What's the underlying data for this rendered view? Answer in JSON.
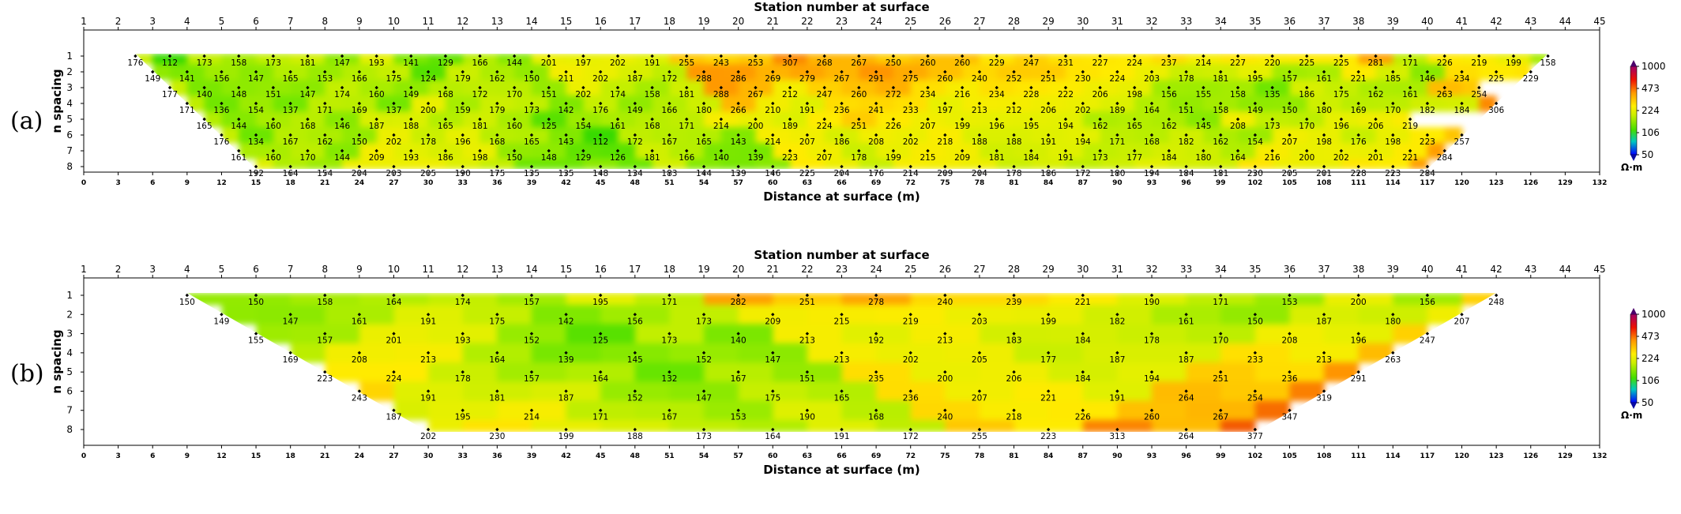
{
  "colors": {
    "scale": [
      "#3b0f8a",
      "#0000ff",
      "#00d0a0",
      "#55dd00",
      "#aaee00",
      "#ffff00",
      "#ffcc00",
      "#ff8800",
      "#ff2200",
      "#cc0000",
      "#a0006a"
    ]
  },
  "chart_data": [
    {
      "panel_label": "(a)",
      "type": "heatmap",
      "title": "Station number at surface",
      "xlabel": "Distance at surface (m)",
      "ylabel": "n spacing",
      "xlim": [
        0,
        132
      ],
      "ylim": [
        1,
        8
      ],
      "xticks": [
        0,
        3,
        6,
        9,
        12,
        15,
        18,
        21,
        24,
        27,
        30,
        33,
        36,
        39,
        42,
        45,
        48,
        51,
        54,
        57,
        60,
        63,
        66,
        69,
        72,
        75,
        78,
        81,
        84,
        87,
        90,
        93,
        96,
        99,
        102,
        105,
        108,
        111,
        114,
        117,
        120,
        123,
        126,
        129,
        132
      ],
      "station_ticks": [
        "1",
        "2",
        "3",
        "4",
        "5",
        "6",
        "7",
        "8",
        "9",
        "10",
        "11",
        "12",
        "13",
        "14",
        "15",
        "16",
        "17",
        "18",
        "19",
        "20",
        "21",
        "22",
        "23",
        "24",
        "25",
        "26",
        "27",
        "28",
        "29",
        "30",
        "31",
        "32",
        "33",
        "34",
        "35",
        "36",
        "37",
        "38",
        "39",
        "40",
        "41",
        "42",
        "43",
        "44",
        "45"
      ],
      "yticks": [
        "1",
        "2",
        "3",
        "4",
        "5",
        "6",
        "7",
        "8"
      ],
      "colorbar": {
        "ticks": [
          "1000",
          "473",
          "224",
          "106",
          "50"
        ],
        "unit": "Ω·m"
      },
      "rows": [
        {
          "n": 1,
          "x_start": 4.5,
          "step": 3,
          "values": [
            176,
            112,
            173,
            158,
            173,
            181,
            147,
            193,
            141,
            129,
            166,
            144,
            201,
            197,
            202,
            191,
            255,
            243,
            253,
            307,
            268,
            267,
            250,
            260,
            260,
            229,
            247,
            231,
            227,
            224,
            237,
            214,
            227,
            220,
            225,
            225,
            281,
            171,
            226,
            219,
            199,
            158
          ]
        },
        {
          "n": 2,
          "x_start": 6,
          "step": 3,
          "values": [
            149,
            141,
            156,
            147,
            165,
            153,
            166,
            175,
            124,
            179,
            162,
            150,
            211,
            202,
            187,
            172,
            288,
            286,
            269,
            279,
            267,
            291,
            275,
            260,
            240,
            252,
            251,
            230,
            224,
            203,
            178,
            181,
            195,
            157,
            161,
            221,
            185,
            146,
            234,
            225,
            229
          ]
        },
        {
          "n": 3,
          "x_start": 7.5,
          "step": 3,
          "values": [
            177,
            140,
            148,
            151,
            147,
            174,
            160,
            149,
            168,
            172,
            170,
            151,
            202,
            174,
            158,
            181,
            288,
            267,
            212,
            247,
            260,
            272,
            234,
            216,
            234,
            228,
            222,
            206,
            198,
            156,
            155,
            158,
            135,
            186,
            175,
            162,
            161,
            263,
            254
          ]
        },
        {
          "n": 4,
          "x_start": 9,
          "step": 3,
          "values": [
            171,
            136,
            154,
            137,
            171,
            169,
            137,
            200,
            159,
            179,
            173,
            142,
            176,
            149,
            166,
            180,
            266,
            210,
            191,
            236,
            241,
            233,
            197,
            213,
            212,
            206,
            202,
            189,
            164,
            151,
            158,
            149,
            150,
            180,
            169,
            170,
            182,
            184,
            306
          ]
        },
        {
          "n": 5,
          "x_start": 10.5,
          "step": 3,
          "values": [
            165,
            144,
            160,
            168,
            146,
            187,
            188,
            165,
            181,
            160,
            125,
            154,
            161,
            168,
            171,
            214,
            200,
            189,
            224,
            251,
            226,
            207,
            199,
            196,
            195,
            194,
            162,
            165,
            162,
            145,
            208,
            173,
            170,
            196,
            206,
            219
          ]
        },
        {
          "n": 6,
          "x_start": 12,
          "step": 3,
          "values": [
            176,
            134,
            167,
            162,
            150,
            202,
            178,
            196,
            168,
            165,
            143,
            112,
            172,
            167,
            165,
            143,
            214,
            207,
            186,
            208,
            202,
            218,
            188,
            188,
            191,
            194,
            171,
            168,
            182,
            162,
            154,
            207,
            198,
            176,
            198,
            223,
            257
          ]
        },
        {
          "n": 7,
          "x_start": 13.5,
          "step": 3,
          "values": [
            161,
            160,
            170,
            144,
            209,
            193,
            186,
            198,
            150,
            148,
            129,
            126,
            181,
            166,
            140,
            139,
            223,
            207,
            178,
            199,
            215,
            209,
            181,
            184,
            191,
            173,
            177,
            184,
            180,
            164,
            216,
            200,
            202,
            201,
            221,
            284
          ]
        },
        {
          "n": 8,
          "x_start": 15,
          "step": 3,
          "values": [
            192,
            164,
            154,
            204,
            203,
            205,
            190,
            175,
            135,
            135,
            148,
            134,
            183,
            144,
            139,
            146,
            225,
            204,
            176,
            214,
            209,
            204,
            178,
            186,
            172,
            180,
            194,
            184,
            181,
            230,
            205,
            201,
            228,
            223,
            284
          ]
        }
      ]
    },
    {
      "panel_label": "(b)",
      "type": "heatmap",
      "title": "Station number at surface",
      "xlabel": "Distance at surface (m)",
      "ylabel": "n spacing",
      "xlim": [
        0,
        132
      ],
      "ylim": [
        1,
        8
      ],
      "xticks": [
        0,
        3,
        6,
        9,
        12,
        15,
        18,
        21,
        24,
        27,
        30,
        33,
        36,
        39,
        42,
        45,
        48,
        51,
        54,
        57,
        60,
        63,
        66,
        69,
        72,
        75,
        78,
        81,
        84,
        87,
        90,
        93,
        96,
        99,
        102,
        105,
        108,
        111,
        114,
        117,
        120,
        123,
        126,
        129,
        132
      ],
      "station_ticks": [
        "1",
        "2",
        "3",
        "4",
        "5",
        "6",
        "7",
        "8",
        "9",
        "10",
        "11",
        "12",
        "13",
        "14",
        "15",
        "16",
        "17",
        "18",
        "19",
        "20",
        "21",
        "22",
        "23",
        "24",
        "25",
        "26",
        "27",
        "28",
        "29",
        "30",
        "31",
        "32",
        "33",
        "34",
        "35",
        "36",
        "37",
        "38",
        "39",
        "40",
        "41",
        "42",
        "43",
        "44",
        "45"
      ],
      "yticks": [
        "1",
        "2",
        "3",
        "4",
        "5",
        "6",
        "7",
        "8"
      ],
      "colorbar": {
        "ticks": [
          "1000",
          "473",
          "224",
          "106",
          "50"
        ],
        "unit": "Ω·m"
      },
      "rows": [
        {
          "n": 1,
          "x_start": 9,
          "step": 6,
          "values": [
            150,
            150,
            158,
            164,
            174,
            157,
            195,
            171,
            282,
            251,
            278,
            240,
            239,
            221,
            190,
            171,
            153,
            200,
            156,
            248
          ]
        },
        {
          "n": 2,
          "x_start": 12,
          "step": 6,
          "values": [
            149,
            147,
            161,
            191,
            175,
            142,
            156,
            173,
            209,
            215,
            219,
            203,
            199,
            182,
            161,
            150,
            187,
            180,
            207
          ]
        },
        {
          "n": 3,
          "x_start": 15,
          "step": 6,
          "values": [
            155,
            157,
            201,
            193,
            152,
            125,
            173,
            140,
            213,
            192,
            213,
            183,
            184,
            178,
            170,
            208,
            196,
            247
          ]
        },
        {
          "n": 4,
          "x_start": 18,
          "step": 6,
          "values": [
            169,
            208,
            213,
            164,
            139,
            145,
            152,
            147,
            213,
            202,
            205,
            177,
            187,
            187,
            233,
            213,
            263
          ]
        },
        {
          "n": 5,
          "x_start": 21,
          "step": 6,
          "values": [
            223,
            224,
            178,
            157,
            164,
            132,
            167,
            151,
            235,
            200,
            206,
            184,
            194,
            251,
            236,
            291
          ]
        },
        {
          "n": 6,
          "x_start": 24,
          "step": 6,
          "values": [
            243,
            191,
            181,
            187,
            152,
            147,
            175,
            165,
            236,
            207,
            221,
            191,
            264,
            254,
            319
          ]
        },
        {
          "n": 7,
          "x_start": 27,
          "step": 6,
          "values": [
            187,
            195,
            214,
            171,
            167,
            153,
            190,
            168,
            240,
            218,
            226,
            260,
            267,
            347
          ]
        },
        {
          "n": 8,
          "x_start": 30,
          "step": 6,
          "values": [
            202,
            230,
            199,
            188,
            173,
            164,
            191,
            172,
            255,
            223,
            313,
            264,
            377
          ]
        }
      ]
    }
  ]
}
